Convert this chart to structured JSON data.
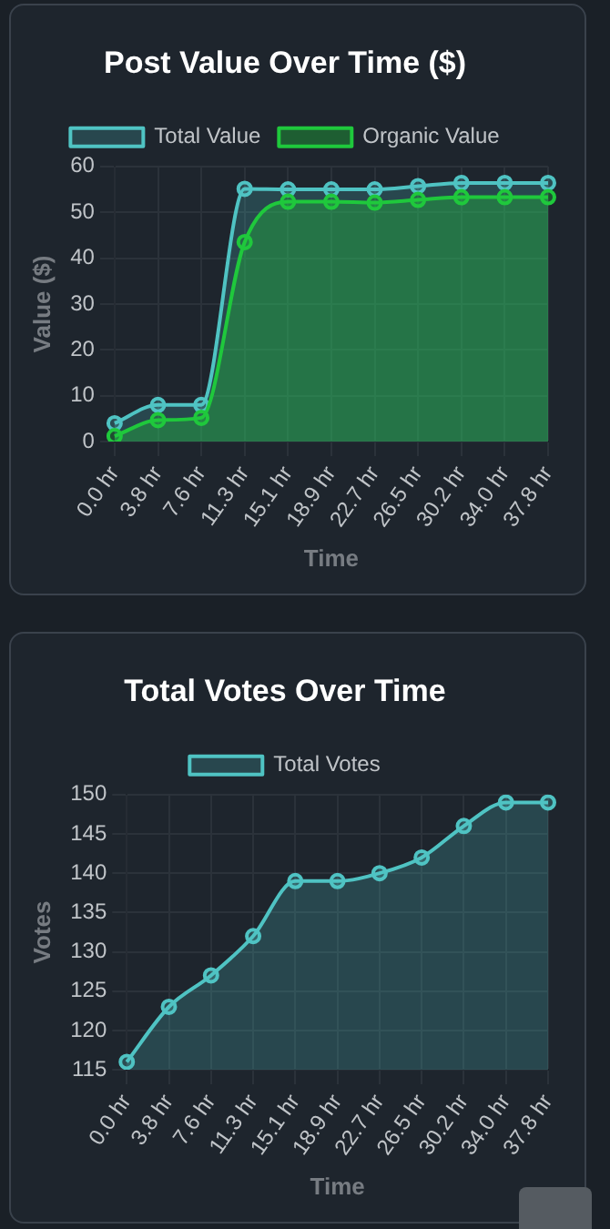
{
  "chart_data": [
    {
      "type": "area",
      "title": "Post Value Over Time ($)",
      "xlabel": "Time",
      "ylabel": "Value ($)",
      "categories": [
        "0.0 hr",
        "3.8 hr",
        "7.6 hr",
        "11.3 hr",
        "15.1 hr",
        "18.9 hr",
        "22.7 hr",
        "26.5 hr",
        "30.2 hr",
        "34.0 hr",
        "37.8 hr"
      ],
      "series": [
        {
          "name": "Total Value",
          "color": "#4fc3c3",
          "values": [
            4.0,
            8.0,
            8.0,
            55.1,
            55.0,
            55.0,
            55.0,
            55.7,
            56.4,
            56.4,
            56.4
          ]
        },
        {
          "name": "Organic Value",
          "color": "#1fc83c",
          "values": [
            1.2,
            4.7,
            5.2,
            43.5,
            52.3,
            52.3,
            52.1,
            52.7,
            53.3,
            53.3,
            53.3
          ]
        }
      ],
      "ylim": [
        0,
        60
      ],
      "yticks": [
        0,
        10,
        20,
        30,
        40,
        50,
        60
      ],
      "grid": true,
      "legend": "top",
      "marker": "circle"
    },
    {
      "type": "area",
      "title": "Total Votes Over Time",
      "xlabel": "Time",
      "ylabel": "Votes",
      "categories": [
        "0.0 hr",
        "3.8 hr",
        "7.6 hr",
        "11.3 hr",
        "15.1 hr",
        "18.9 hr",
        "22.7 hr",
        "26.5 hr",
        "30.2 hr",
        "34.0 hr",
        "37.8 hr"
      ],
      "series": [
        {
          "name": "Total Votes",
          "color": "#4fc3c3",
          "values": [
            116,
            123,
            127,
            132,
            139,
            139,
            140,
            142,
            146,
            149,
            149
          ]
        }
      ],
      "ylim": [
        115,
        150
      ],
      "yticks": [
        115,
        120,
        125,
        130,
        135,
        140,
        145,
        150
      ],
      "grid": true,
      "legend": "top",
      "marker": "circle"
    }
  ]
}
